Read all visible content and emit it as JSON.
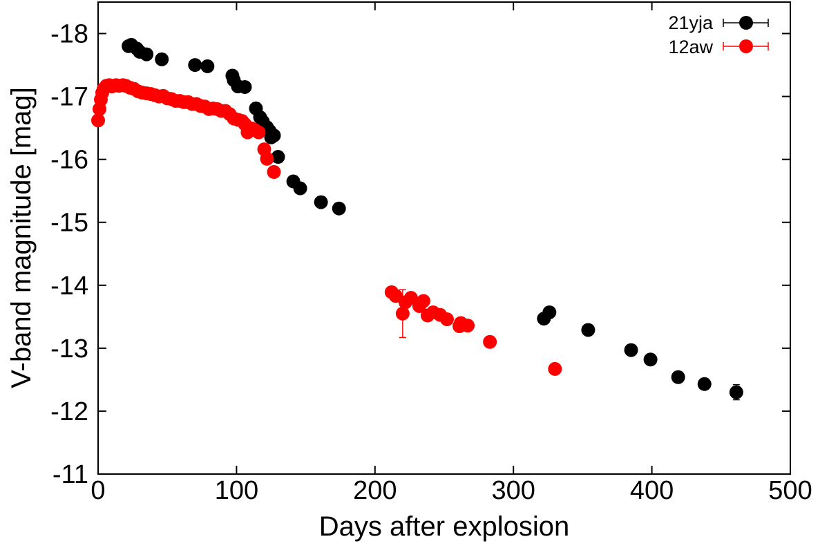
{
  "chart_data": {
    "type": "scatter",
    "xlabel": "Days after explosion",
    "ylabel": "V-band magnitude [mag]",
    "xlim": [
      0,
      500
    ],
    "ylim": [
      -11,
      -18.5
    ],
    "y_inverted": true,
    "x_ticks": [
      0,
      100,
      200,
      300,
      400,
      500
    ],
    "y_ticks": [
      -11,
      -12,
      -13,
      -14,
      -15,
      -16,
      -17,
      -18
    ],
    "x_tick_labels": [
      "0",
      "100",
      "200",
      "300",
      "400",
      "500"
    ],
    "y_tick_labels": [
      "-11",
      "-12",
      "-13",
      "-14",
      "-15",
      "-16",
      "-17",
      "-18"
    ],
    "grid": false,
    "legend_position": "top-right",
    "series": [
      {
        "name": "21yja",
        "color": "#000000",
        "points": [
          [
            22,
            -17.8
          ],
          [
            24,
            -17.82
          ],
          [
            28,
            -17.76
          ],
          [
            30,
            -17.71
          ],
          [
            35,
            -17.67
          ],
          [
            46,
            -17.59
          ],
          [
            70,
            -17.5
          ],
          [
            79,
            -17.48
          ],
          [
            97,
            -17.33
          ],
          [
            98,
            -17.26
          ],
          [
            101,
            -17.16
          ],
          [
            106,
            -17.15
          ],
          [
            114,
            -16.81
          ],
          [
            117,
            -16.67
          ],
          [
            119,
            -16.6
          ],
          [
            122,
            -16.51
          ],
          [
            124,
            -16.45
          ],
          [
            125,
            -16.35
          ],
          [
            127,
            -16.38
          ],
          [
            130,
            -16.04
          ],
          [
            141,
            -15.65
          ],
          [
            146,
            -15.54
          ],
          [
            161,
            -15.32
          ],
          [
            174,
            -15.22
          ],
          [
            322,
            -13.47
          ],
          [
            326,
            -13.57
          ],
          [
            354,
            -13.29
          ],
          [
            385,
            -12.97
          ],
          [
            399,
            -12.82
          ],
          [
            419,
            -12.54
          ],
          [
            438,
            -12.43
          ],
          [
            461,
            -12.3
          ]
        ],
        "errors": [
          0.03,
          0.03,
          0.03,
          0.03,
          0.03,
          0.03,
          0.03,
          0.03,
          0.03,
          0.03,
          0.03,
          0.03,
          0.03,
          0.03,
          0.03,
          0.03,
          0.03,
          0.03,
          0.03,
          0.03,
          0.03,
          0.03,
          0.03,
          0.03,
          0.04,
          0.04,
          0.06,
          0.04,
          0.04,
          0.04,
          0.04,
          0.12
        ]
      },
      {
        "name": "12aw",
        "color": "#ff0000",
        "points": [
          [
            0,
            -16.62
          ],
          [
            1,
            -16.8
          ],
          [
            2,
            -16.95
          ],
          [
            3,
            -17.06
          ],
          [
            4,
            -17.12
          ],
          [
            6,
            -17.17
          ],
          [
            8,
            -17.18
          ],
          [
            10,
            -17.16
          ],
          [
            13,
            -17.18
          ],
          [
            15,
            -17.17
          ],
          [
            18,
            -17.18
          ],
          [
            20,
            -17.17
          ],
          [
            23,
            -17.14
          ],
          [
            26,
            -17.12
          ],
          [
            29,
            -17.08
          ],
          [
            32,
            -17.06
          ],
          [
            35,
            -17.05
          ],
          [
            38,
            -17.04
          ],
          [
            41,
            -17.02
          ],
          [
            44,
            -17.0
          ],
          [
            47,
            -17.01
          ],
          [
            50,
            -16.97
          ],
          [
            53,
            -16.96
          ],
          [
            56,
            -16.93
          ],
          [
            59,
            -16.93
          ],
          [
            62,
            -16.91
          ],
          [
            65,
            -16.91
          ],
          [
            68,
            -16.88
          ],
          [
            71,
            -16.88
          ],
          [
            74,
            -16.85
          ],
          [
            77,
            -16.84
          ],
          [
            80,
            -16.8
          ],
          [
            83,
            -16.81
          ],
          [
            86,
            -16.8
          ],
          [
            89,
            -16.77
          ],
          [
            92,
            -16.77
          ],
          [
            95,
            -16.72
          ],
          [
            98,
            -16.65
          ],
          [
            101,
            -16.63
          ],
          [
            104,
            -16.61
          ],
          [
            106,
            -16.56
          ],
          [
            108,
            -16.43
          ],
          [
            111,
            -16.49
          ],
          [
            113,
            -16.47
          ],
          [
            116,
            -16.43
          ],
          [
            120,
            -16.16
          ],
          [
            122,
            -16.01
          ],
          [
            127,
            -15.8
          ],
          [
            212,
            -13.89
          ],
          [
            215,
            -13.83
          ],
          [
            220,
            -13.55
          ],
          [
            222,
            -13.73
          ],
          [
            226,
            -13.8
          ],
          [
            232,
            -13.67
          ],
          [
            235,
            -13.75
          ],
          [
            238,
            -13.52
          ],
          [
            242,
            -13.57
          ],
          [
            247,
            -13.53
          ],
          [
            252,
            -13.46
          ],
          [
            261,
            -13.35
          ],
          [
            262,
            -13.4
          ],
          [
            267,
            -13.36
          ],
          [
            283,
            -13.1
          ],
          [
            330,
            -12.67
          ]
        ],
        "errors": [
          0.03,
          0.03,
          0.03,
          0.03,
          0.03,
          0.03,
          0.03,
          0.03,
          0.03,
          0.03,
          0.03,
          0.03,
          0.03,
          0.03,
          0.03,
          0.03,
          0.03,
          0.03,
          0.03,
          0.03,
          0.03,
          0.03,
          0.03,
          0.03,
          0.03,
          0.03,
          0.03,
          0.03,
          0.03,
          0.03,
          0.03,
          0.03,
          0.03,
          0.03,
          0.03,
          0.03,
          0.03,
          0.03,
          0.03,
          0.03,
          0.03,
          0.03,
          0.03,
          0.03,
          0.03,
          0.03,
          0.03,
          0.03,
          0.05,
          0.05,
          0.38,
          0.05,
          0.05,
          0.05,
          0.05,
          0.05,
          0.05,
          0.05,
          0.05,
          0.05,
          0.05,
          0.05,
          0.05,
          0.05
        ]
      }
    ]
  }
}
